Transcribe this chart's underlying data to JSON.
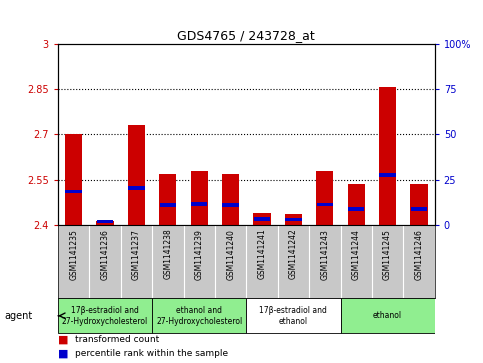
{
  "title": "GDS4765 / 243728_at",
  "samples": [
    "GSM1141235",
    "GSM1141236",
    "GSM1141237",
    "GSM1141238",
    "GSM1141239",
    "GSM1141240",
    "GSM1141241",
    "GSM1141242",
    "GSM1141243",
    "GSM1141244",
    "GSM1141245",
    "GSM1141246"
  ],
  "red_values": [
    2.7,
    2.415,
    2.73,
    2.57,
    2.58,
    2.57,
    2.44,
    2.435,
    2.578,
    2.535,
    2.855,
    2.535
  ],
  "blue_values_pct": [
    15,
    12,
    14,
    13,
    13,
    13,
    13,
    12,
    15,
    15,
    20,
    14
  ],
  "y_min": 2.4,
  "y_max": 3.0,
  "y_ticks": [
    2.4,
    2.55,
    2.7,
    2.85,
    3.0
  ],
  "y_tick_labels": [
    "2.4",
    "2.55",
    "2.7",
    "2.85",
    "3"
  ],
  "y_right_ticks": [
    0,
    25,
    50,
    75,
    100
  ],
  "y_right_labels": [
    "0",
    "25",
    "50",
    "75",
    "100%"
  ],
  "grid_lines": [
    2.55,
    2.7,
    2.85
  ],
  "agent_groups": [
    {
      "label": "17β-estradiol and\n27-Hydroxycholesterol",
      "start": 0,
      "end": 3,
      "color": "#90ee90"
    },
    {
      "label": "ethanol and\n27-Hydroxycholesterol",
      "start": 3,
      "end": 6,
      "color": "#90ee90"
    },
    {
      "label": "17β-estradiol and\nethanol",
      "start": 6,
      "end": 9,
      "color": "#ffffff"
    },
    {
      "label": "ethanol",
      "start": 9,
      "end": 12,
      "color": "#90ee90"
    }
  ],
  "bar_width": 0.55,
  "bar_bottom": 2.4,
  "red_color": "#cc0000",
  "blue_color": "#0000cc",
  "sample_bg_color": "#c8c8c8",
  "legend_red": "transformed count",
  "legend_blue": "percentile rank within the sample",
  "agent_label": "agent"
}
